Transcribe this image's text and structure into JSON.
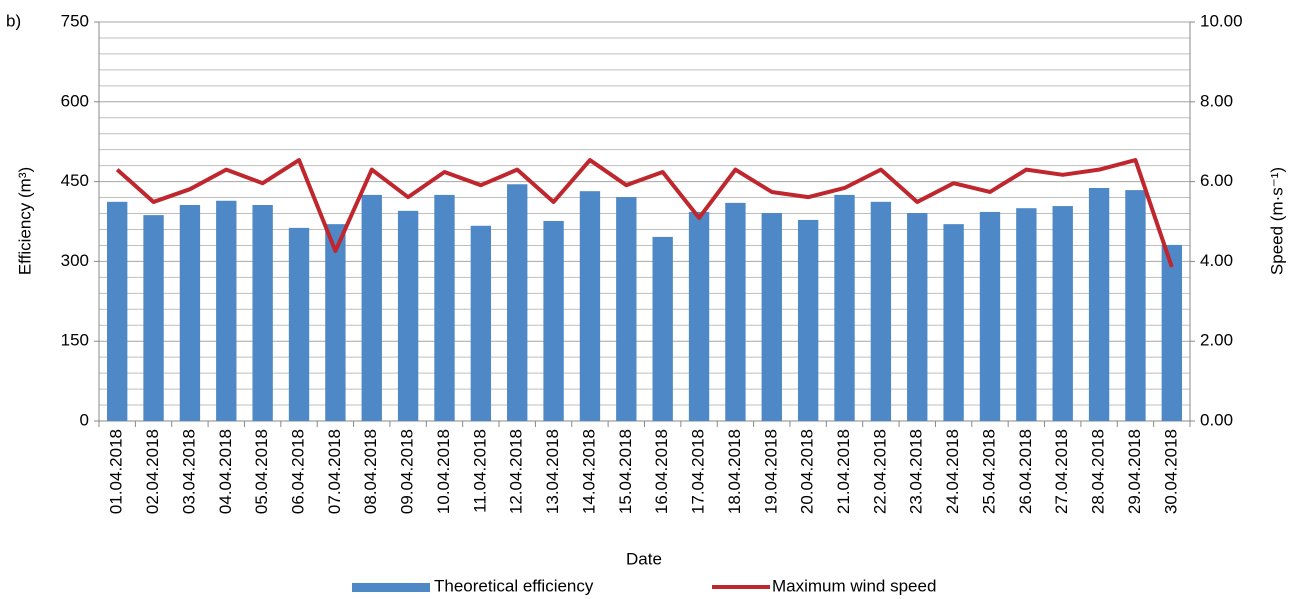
{
  "chart_data": {
    "type": "bar_line",
    "panel_label": "b)",
    "xlabel": "Date",
    "ylabel": "Efficiency (m³)",
    "y2label": "Speed (m·s⁻¹)",
    "categories": [
      "01.04.2018",
      "02.04.2018",
      "03.04.2018",
      "04.04.2018",
      "05.04.2018",
      "06.04.2018",
      "07.04.2018",
      "08.04.2018",
      "09.04.2018",
      "10.04.2018",
      "11.04.2018",
      "12.04.2018",
      "13.04.2018",
      "14.04.2018",
      "15.04.2018",
      "16.04.2018",
      "17.04.2018",
      "18.04.2018",
      "19.04.2018",
      "20.04.2018",
      "21.04.2018",
      "22.04.2018",
      "23.04.2018",
      "24.04.2018",
      "25.04.2018",
      "26.04.2018",
      "27.04.2018",
      "28.04.2018",
      "29.04.2018",
      "30.04.2018"
    ],
    "series": [
      {
        "name": "Theoretical efficiency",
        "type": "bar",
        "color": "#4e88c7",
        "values": [
          412,
          387,
          406,
          414,
          406,
          363,
          370,
          425,
          395,
          425,
          367,
          445,
          376,
          432,
          421,
          346,
          393,
          410,
          391,
          378,
          425,
          412,
          391,
          370,
          393,
          400,
          404,
          438,
          434,
          331
        ]
      },
      {
        "name": "Maximum wind speed",
        "type": "line",
        "axis": "y2",
        "color": "#c0262d",
        "values": [
          6.3,
          5.49,
          5.81,
          6.3,
          5.96,
          6.54,
          4.26,
          6.3,
          5.61,
          6.24,
          5.91,
          6.3,
          5.49,
          6.54,
          5.91,
          6.24,
          5.09,
          6.3,
          5.74,
          5.61,
          5.84,
          6.3,
          5.49,
          5.96,
          5.74,
          6.3,
          6.17,
          6.3,
          6.54,
          3.86
        ]
      }
    ],
    "ylim": [
      0,
      750
    ],
    "yticks": [
      0,
      150,
      300,
      450,
      600,
      750
    ],
    "yminorticks": [
      30,
      60,
      90,
      120,
      180,
      210,
      240,
      270,
      330,
      360,
      390,
      420,
      480,
      510,
      540,
      570,
      630,
      660,
      690,
      720
    ],
    "y2lim": [
      0,
      10
    ],
    "y2ticks": [
      {
        "value": 0,
        "label": "0.00"
      },
      {
        "value": 2,
        "label": "2.00"
      },
      {
        "value": 4,
        "label": "4.00"
      },
      {
        "value": 6,
        "label": "6.00"
      },
      {
        "value": 8,
        "label": "8.00"
      },
      {
        "value": 10,
        "label": "10.00"
      }
    ],
    "grid": true,
    "legend": "bottom"
  }
}
